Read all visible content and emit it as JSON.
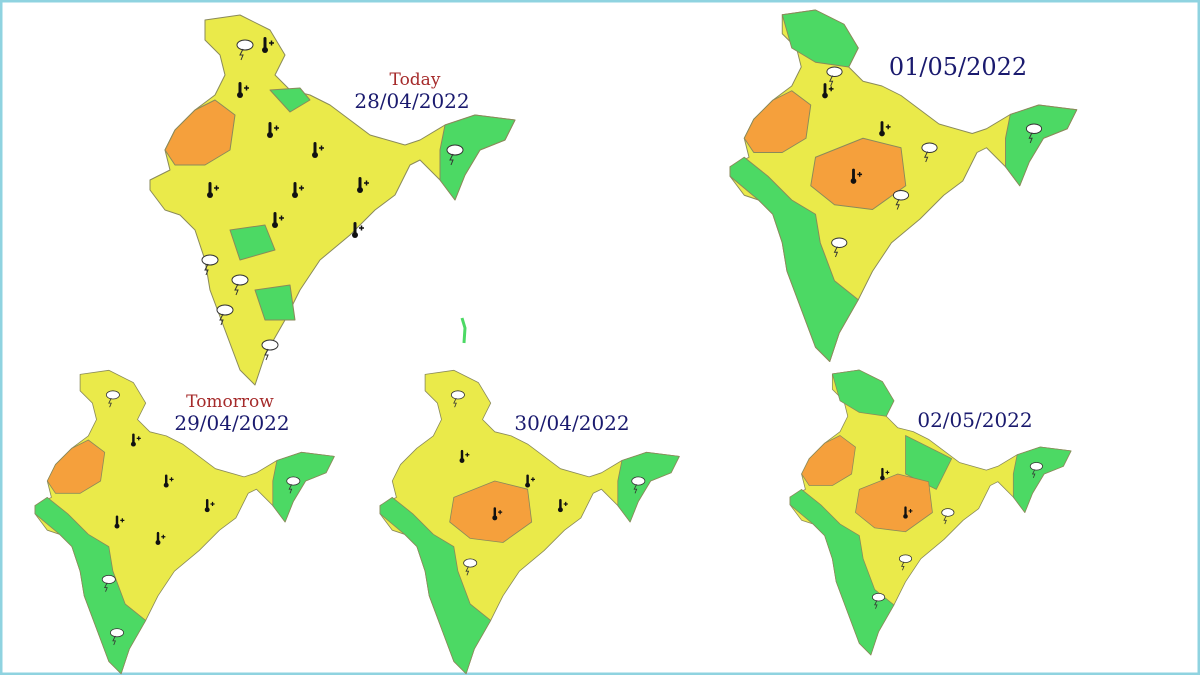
{
  "maps": [
    {
      "label": "Today",
      "date": "28/04/2022"
    },
    {
      "label": "Tomorrow",
      "date": "29/04/2022"
    },
    {
      "date": "30/04/2022"
    },
    {
      "date": "01/05/2022"
    },
    {
      "date": "02/05/2022"
    }
  ]
}
